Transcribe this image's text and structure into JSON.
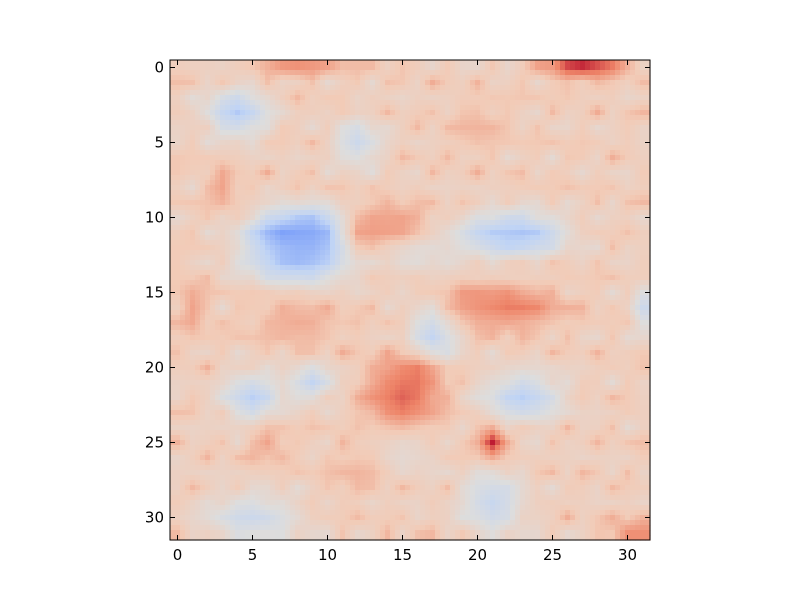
{
  "chart_data": {
    "type": "heatmap",
    "title": "",
    "xlabel": "",
    "ylabel": "",
    "colormap": "coolwarm",
    "colormap_stops": [
      "#3b4cc0",
      "#7b9ff9",
      "#c0d4f5",
      "#dddddd",
      "#f2cbb7",
      "#ee8468",
      "#b40426"
    ],
    "interpolation": "bilinear",
    "grid": false,
    "legend": "none",
    "rows": 32,
    "cols": 32,
    "xlim": [
      -0.5,
      31.5
    ],
    "ylim": [
      31.5,
      -0.5
    ],
    "y_inverted": true,
    "x_ticks": [
      0,
      5,
      10,
      15,
      20,
      25,
      30
    ],
    "x_tick_labels": [
      "0",
      "5",
      "10",
      "15",
      "20",
      "25",
      "30"
    ],
    "y_ticks": [
      0,
      5,
      10,
      15,
      20,
      25,
      30
    ],
    "y_tick_labels": [
      "0",
      "5",
      "10",
      "15",
      "20",
      "25",
      "30"
    ],
    "value_range": [
      0,
      1
    ],
    "value_note": "normalized intensity, 0 = deep blue, 0.5 = neutral gray, 1 = deep red",
    "background_level": 0.64,
    "features": [
      {
        "row": 11,
        "col": 7.5,
        "r_row": 1.0,
        "r_col": 2.0,
        "level": 0.04
      },
      {
        "row": 11,
        "col": 9.5,
        "r_row": 1.0,
        "r_col": 1.5,
        "level": 0.06
      },
      {
        "row": 11.5,
        "col": 8.5,
        "r_row": 1.8,
        "r_col": 3.5,
        "level": 0.2
      },
      {
        "row": 13,
        "col": 8,
        "r_row": 1.2,
        "r_col": 3.0,
        "level": 0.25
      },
      {
        "row": 11,
        "col": 22.5,
        "r_row": 0.9,
        "r_col": 2.2,
        "level": 0.1
      },
      {
        "row": 11.2,
        "col": 22,
        "r_row": 1.3,
        "r_col": 3.5,
        "level": 0.3
      },
      {
        "row": 3,
        "col": 4,
        "r_row": 1.5,
        "r_col": 2.0,
        "level": 0.3
      },
      {
        "row": 5,
        "col": 12,
        "r_row": 1.5,
        "r_col": 1.5,
        "level": 0.4
      },
      {
        "row": 18,
        "col": 17,
        "r_row": 2.0,
        "r_col": 1.5,
        "level": 0.32
      },
      {
        "row": 22,
        "col": 5,
        "r_row": 1.5,
        "r_col": 1.8,
        "level": 0.32
      },
      {
        "row": 22,
        "col": 23,
        "r_row": 1.5,
        "r_col": 2.5,
        "level": 0.32
      },
      {
        "row": 21,
        "col": 9,
        "r_row": 1.0,
        "r_col": 1.5,
        "level": 0.35
      },
      {
        "row": 30,
        "col": 5,
        "r_row": 1.5,
        "r_col": 3.0,
        "level": 0.4
      },
      {
        "row": 29,
        "col": 21,
        "r_row": 2.0,
        "r_col": 2.0,
        "level": 0.38
      },
      {
        "row": 16,
        "col": 31.5,
        "r_row": 1.5,
        "r_col": 1.0,
        "level": 0.35
      },
      {
        "row": 12,
        "col": 16,
        "r_row": 1.5,
        "r_col": 3.0,
        "level": 0.5
      },
      {
        "row": 25,
        "col": 15,
        "r_row": 2.0,
        "r_col": 2.0,
        "level": 0.48
      },
      {
        "row": 10.5,
        "col": 14.5,
        "r_row": 1.2,
        "r_col": 2.5,
        "level": 0.8
      },
      {
        "row": 11,
        "col": 12.5,
        "r_row": 1.5,
        "r_col": 1.5,
        "level": 0.78
      },
      {
        "row": 16,
        "col": 22,
        "r_row": 1.3,
        "r_col": 3.5,
        "level": 0.86
      },
      {
        "row": 15.5,
        "col": 20,
        "r_row": 1.0,
        "r_col": 2.0,
        "level": 0.8
      },
      {
        "row": 17,
        "col": 8,
        "r_row": 1.5,
        "r_col": 3.0,
        "level": 0.74
      },
      {
        "row": 22,
        "col": 15,
        "r_row": 2.5,
        "r_col": 2.5,
        "level": 0.88
      },
      {
        "row": 20.5,
        "col": 16,
        "r_row": 1.2,
        "r_col": 1.5,
        "level": 0.86
      },
      {
        "row": 25,
        "col": 21,
        "r_row": 0.9,
        "r_col": 0.9,
        "level": 0.97
      },
      {
        "row": 0,
        "col": 27,
        "r_row": 0.8,
        "r_col": 2.5,
        "level": 0.95
      },
      {
        "row": 0,
        "col": 8,
        "r_row": 0.7,
        "r_col": 3.0,
        "level": 0.8
      },
      {
        "row": 25,
        "col": 6,
        "r_row": 1.2,
        "r_col": 1.2,
        "level": 0.76
      },
      {
        "row": 31,
        "col": 30.5,
        "r_row": 1.0,
        "r_col": 1.5,
        "level": 0.82
      },
      {
        "row": 16,
        "col": 1,
        "r_row": 2.0,
        "r_col": 1.0,
        "level": 0.76
      },
      {
        "row": 8,
        "col": 3,
        "r_row": 1.5,
        "r_col": 1.0,
        "level": 0.76
      },
      {
        "row": 4,
        "col": 20,
        "r_row": 1.5,
        "r_col": 2.0,
        "level": 0.72
      },
      {
        "row": 27,
        "col": 12,
        "r_row": 1.5,
        "r_col": 2.0,
        "level": 0.72
      }
    ]
  }
}
